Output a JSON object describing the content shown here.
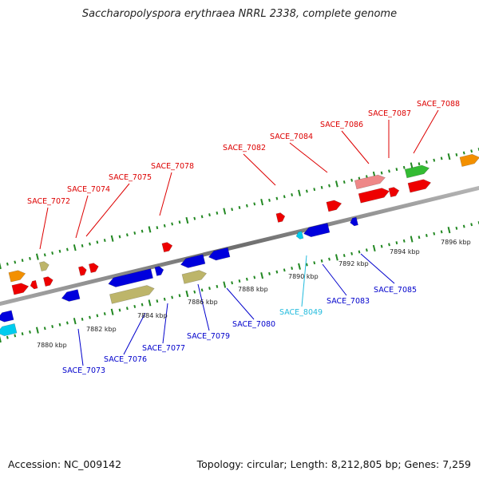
{
  "title": "Saccharopolyspora erythraea NRRL 2338, complete genome",
  "footer": {
    "accession": "Accession: NC_009142",
    "summary": "Topology: circular; Length: 8,212,805 bp; Genes: 7,259"
  },
  "colors": {
    "red": "#ee0000",
    "pink": "#ee8888",
    "orange": "#f39000",
    "green": "#33bb33",
    "blue": "#0000dd",
    "tan": "#bdb56a",
    "cyan": "#00ccee",
    "backbone": "#888888",
    "tick": "#228822",
    "label_red": "#dd0000",
    "label_blue": "#0000cc",
    "label_cyan": "#22bbdd"
  },
  "kbp_ticks": [
    "7880 kbp",
    "7882 kbp",
    "7884 kbp",
    "7886 kbp",
    "7888 kbp",
    "7890 kbp",
    "7892 kbp",
    "7894 kbp",
    "7896 kbp"
  ],
  "top_labels": [
    "SACE_7072",
    "SACE_7074",
    "SACE_7075",
    "SACE_7078",
    "SACE_7082",
    "SACE_7084",
    "SACE_7086",
    "SACE_7087",
    "SACE_7088"
  ],
  "bottom_labels": [
    "SACE_7073",
    "SACE_7076",
    "SACE_7077",
    "SACE_7079",
    "SACE_7080",
    "SACE_8049",
    "SACE_7083",
    "SACE_7085"
  ],
  "bottom_label_colors": [
    "blue",
    "blue",
    "blue",
    "blue",
    "blue",
    "cyan",
    "blue",
    "blue"
  ]
}
